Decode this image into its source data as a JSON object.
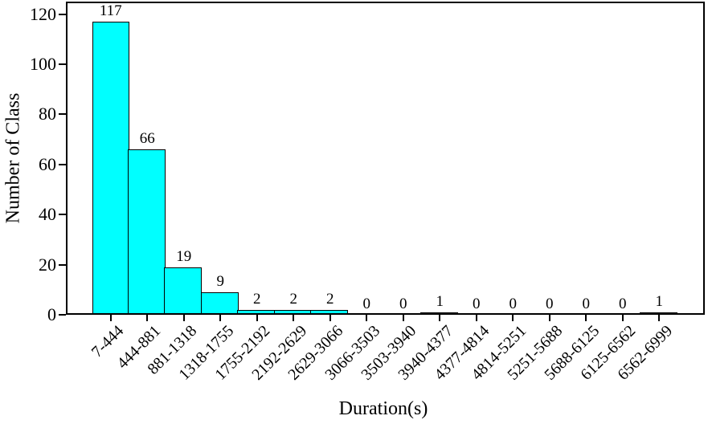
{
  "chart_data": {
    "type": "bar",
    "title": "",
    "xlabel": "Duration(s)",
    "ylabel": "Number of Class",
    "categories": [
      "7-444",
      "444-881",
      "881-1318",
      "1318-1755",
      "1755-2192",
      "2192-2629",
      "2629-3066",
      "3066-3503",
      "3503-3940",
      "3940-4377",
      "4377-4814",
      "4814-5251",
      "5251-5688",
      "5688-6125",
      "6125-6562",
      "6562-6999"
    ],
    "values": [
      117,
      66,
      19,
      9,
      2,
      2,
      2,
      0,
      0,
      1,
      0,
      0,
      0,
      0,
      0,
      1
    ],
    "value_labels": [
      "117",
      "66",
      "19",
      "9",
      "2",
      "2",
      "2",
      "0",
      "0",
      "1",
      "0",
      "0",
      "0",
      "0",
      "0",
      "1"
    ],
    "yticks": [
      0,
      20,
      40,
      60,
      80,
      100,
      120
    ],
    "ylim": [
      0,
      125
    ],
    "x_tick_rotation": 45,
    "grid": false,
    "legend": null,
    "bar_color": "#00FFFF",
    "bar_edge_color": "#000000",
    "axis_color": "#000000",
    "text_color": "#000000"
  }
}
